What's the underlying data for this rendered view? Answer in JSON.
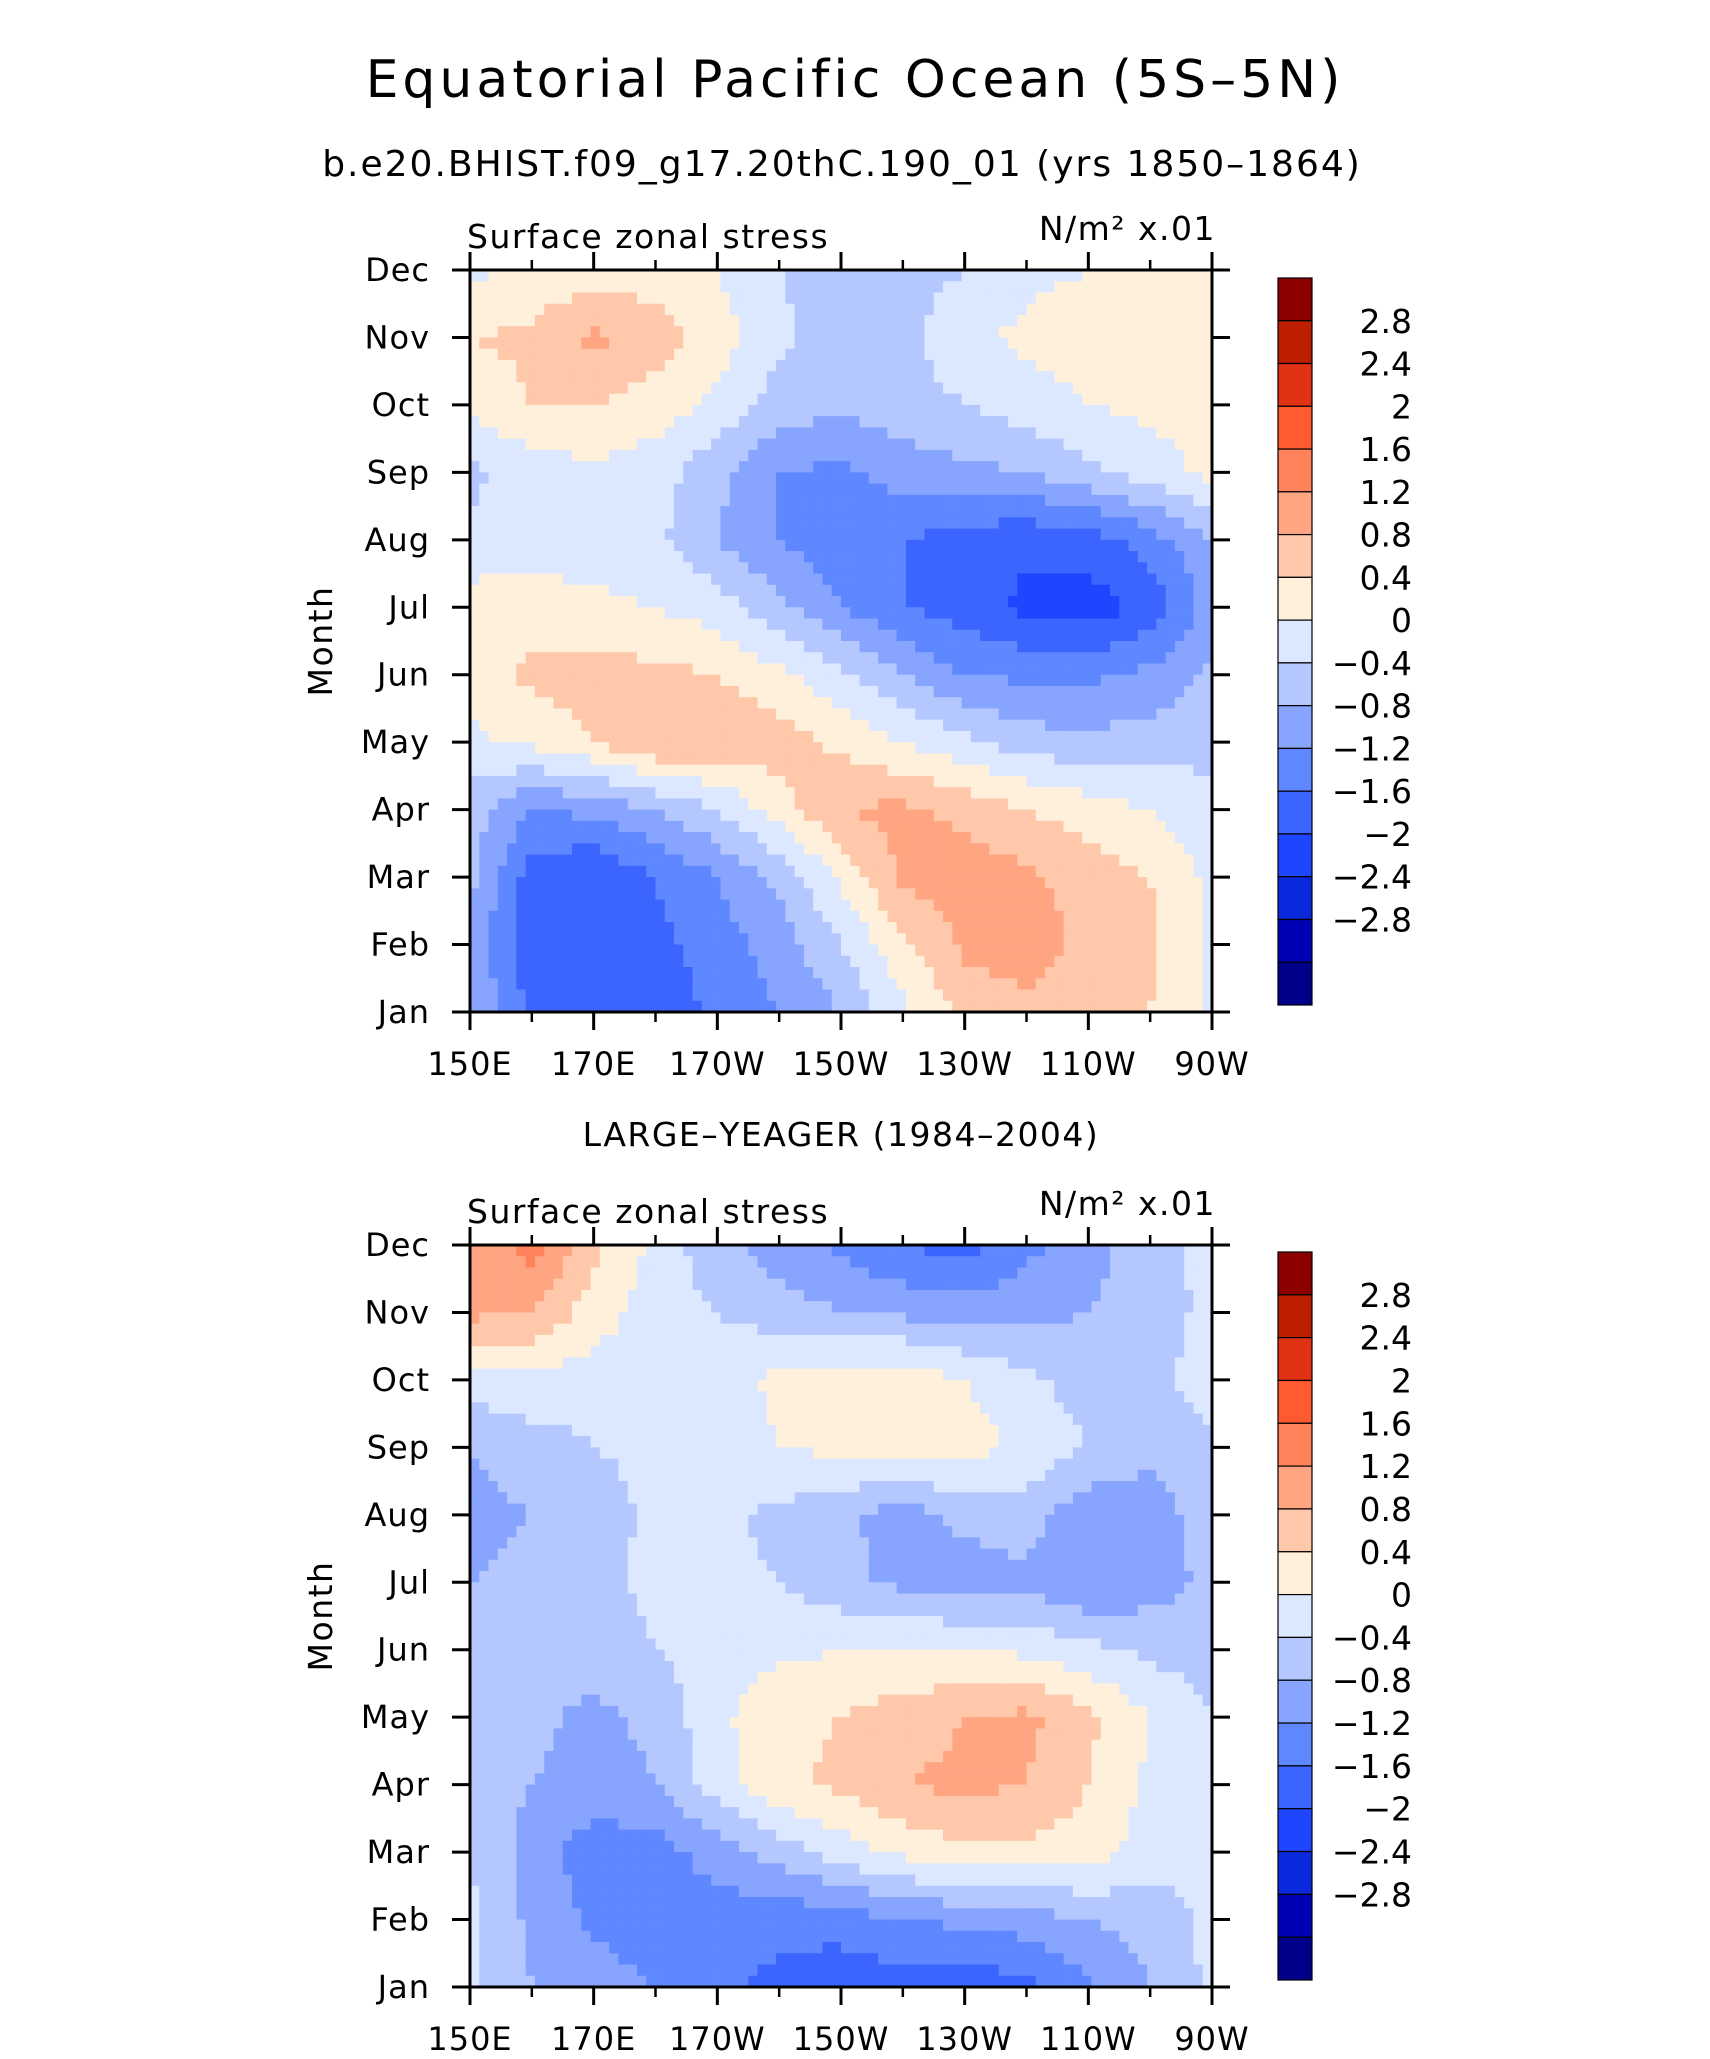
{
  "figure": {
    "title": "Equatorial Pacific Ocean (5S–5N)",
    "subtitle": "b.e20.BHIST.f09_g17.20thC.190_01 (yrs 1850–1864)"
  },
  "colors": {
    "levels": [
      "#00008b",
      "#0000b4",
      "#0a28dc",
      "#1e46ff",
      "#3c64ff",
      "#5f87ff",
      "#87a5ff",
      "#b4c8ff",
      "#dce8ff",
      "#fff0dc",
      "#ffc8aa",
      "#ffa582",
      "#ff825a",
      "#ff5a32",
      "#e13214",
      "#be1e00",
      "#8c0000"
    ],
    "axis": "#000000"
  },
  "chart_data": [
    {
      "type": "heatmap",
      "panel_title": "",
      "left_label": "Surface zonal stress",
      "right_label": "N/m² x.01",
      "xlabel": "",
      "ylabel": "Month",
      "x_ticks": [
        "150E",
        "170E",
        "170W",
        "150W",
        "130W",
        "110W",
        "90W"
      ],
      "x_values": [
        150,
        160,
        170,
        180,
        190,
        200,
        210,
        220,
        230,
        240,
        250,
        260,
        270
      ],
      "x_range": [
        150,
        270
      ],
      "y_ticks": [
        "Jan",
        "Feb",
        "Mar",
        "Apr",
        "May",
        "Jun",
        "Jul",
        "Aug",
        "Sep",
        "Oct",
        "Nov",
        "Dec"
      ],
      "contour_levels": [
        -2.8,
        -2.4,
        -2,
        -1.6,
        -1.2,
        -0.8,
        -0.4,
        0,
        0.4,
        0.8,
        1.2,
        1.6,
        2,
        2.4,
        2.8
      ],
      "colorbar_labels": [
        "2.8",
        "2.4",
        "2",
        "1.6",
        "1.2",
        "0.8",
        "0.4",
        "0",
        "−0.4",
        "−0.8",
        "−1.2",
        "−1.6",
        "−2",
        "−2.4",
        "−2.8"
      ],
      "values": [
        [
          -0.4,
          -1.3,
          -1.5,
          -1.5,
          -1.1,
          -0.8,
          -0.4,
          0.3,
          0.9,
          1.1,
          1.0,
          0.8,
          0.3
        ],
        [
          -0.5,
          -1.5,
          -1.6,
          -1.3,
          -1.0,
          -0.6,
          0.0,
          0.7,
          1.3,
          1.4,
          1.1,
          0.9,
          0.3
        ],
        [
          -0.3,
          -1.4,
          -1.6,
          -1.2,
          -0.8,
          -0.3,
          0.5,
          1.3,
          1.4,
          1.3,
          1.0,
          0.8,
          0.3
        ],
        [
          -0.2,
          -0.8,
          -0.7,
          -0.4,
          0.0,
          0.6,
          1.2,
          1.3,
          1.1,
          0.8,
          0.6,
          0.4,
          0.1
        ],
        [
          0.3,
          0.5,
          0.8,
          1.2,
          1.1,
          1.0,
          0.7,
          0.4,
          0.1,
          -0.2,
          -0.3,
          -0.2,
          -0.1
        ],
        [
          0.6,
          0.9,
          1.0,
          0.9,
          0.8,
          0.5,
          0.1,
          -0.4,
          -0.8,
          -0.9,
          -0.9,
          -0.7,
          -0.3
        ],
        [
          0.6,
          0.6,
          0.5,
          0.4,
          0.2,
          -0.3,
          -0.8,
          -1.2,
          -1.4,
          -1.7,
          -1.8,
          -1.5,
          -0.6
        ],
        [
          0.1,
          0.2,
          0.2,
          0.1,
          -0.4,
          -0.8,
          -1.1,
          -1.2,
          -1.4,
          -1.5,
          -1.4,
          -1.0,
          -0.4
        ],
        [
          -0.1,
          0.2,
          0.3,
          0.2,
          -0.3,
          -0.8,
          -0.9,
          -0.6,
          -0.5,
          -0.4,
          -0.1,
          0.2,
          0.5
        ],
        [
          0.5,
          0.8,
          0.8,
          0.6,
          0.3,
          -0.2,
          -0.3,
          -0.2,
          0.0,
          0.2,
          0.4,
          0.5,
          0.6
        ],
        [
          0.8,
          0.9,
          1.3,
          1.0,
          0.6,
          0.1,
          -0.2,
          -0.1,
          0.3,
          0.5,
          0.6,
          0.6,
          0.7
        ],
        [
          0.3,
          0.5,
          0.6,
          0.6,
          0.4,
          0.0,
          -0.2,
          -0.2,
          0.0,
          0.3,
          0.4,
          0.4,
          0.4
        ]
      ]
    },
    {
      "type": "heatmap",
      "panel_title": "LARGE–YEAGER (1984–2004)",
      "left_label": "Surface zonal stress",
      "right_label": "N/m² x.01",
      "xlabel": "",
      "ylabel": "Month",
      "x_ticks": [
        "150E",
        "170E",
        "170W",
        "150W",
        "130W",
        "110W",
        "90W"
      ],
      "x_values": [
        150,
        160,
        170,
        180,
        190,
        200,
        210,
        220,
        230,
        240,
        250,
        260,
        270
      ],
      "x_range": [
        150,
        270
      ],
      "y_ticks": [
        "Jan",
        "Feb",
        "Mar",
        "Apr",
        "May",
        "Jun",
        "Jul",
        "Aug",
        "Sep",
        "Oct",
        "Nov",
        "Dec"
      ],
      "contour_levels": [
        -2.8,
        -2.4,
        -2,
        -1.6,
        -1.2,
        -0.8,
        -0.4,
        0,
        0.4,
        0.8,
        1.2,
        1.6,
        2,
        2.4,
        2.8
      ],
      "colorbar_labels": [
        "2.8",
        "2.4",
        "2",
        "1.6",
        "1.2",
        "0.8",
        "0.4",
        "0",
        "−0.4",
        "−0.8",
        "−1.2",
        "−1.6",
        "−2",
        "−2.4",
        "−2.8"
      ],
      "values": [
        [
          0.1,
          -0.4,
          -0.6,
          -0.8,
          -1.1,
          -1.3,
          -1.5,
          -1.4,
          -1.5,
          -1.3,
          -0.9,
          -0.4,
          0.1
        ],
        [
          0.1,
          -0.5,
          -0.9,
          -1.0,
          -1.0,
          -1.1,
          -1.0,
          -0.8,
          -0.7,
          -0.6,
          -0.4,
          -0.2,
          0.1
        ],
        [
          0.0,
          -0.6,
          -1.0,
          -1.0,
          -0.6,
          -0.2,
          0.2,
          0.5,
          0.7,
          0.7,
          0.6,
          0.2,
          0.0
        ],
        [
          -0.1,
          -0.4,
          -0.6,
          -0.4,
          0.2,
          0.7,
          0.9,
          1.2,
          1.3,
          1.2,
          0.8,
          0.3,
          0.0
        ],
        [
          -0.1,
          -0.3,
          -0.5,
          -0.3,
          0.3,
          0.7,
          0.8,
          1.0,
          1.2,
          1.3,
          0.9,
          0.4,
          0.0
        ],
        [
          -0.3,
          -0.3,
          -0.2,
          0.0,
          0.2,
          0.3,
          0.4,
          0.4,
          0.4,
          0.3,
          0.1,
          -0.1,
          -0.2
        ],
        [
          -0.4,
          -0.3,
          -0.1,
          0.1,
          0.1,
          0.0,
          -0.3,
          -0.5,
          -0.6,
          -0.5,
          -0.8,
          -0.6,
          -0.3
        ],
        [
          -0.5,
          -0.4,
          -0.2,
          0.1,
          0.1,
          -0.1,
          -0.3,
          -0.6,
          -0.3,
          -0.2,
          -0.7,
          -0.6,
          -0.2
        ],
        [
          -0.4,
          -0.2,
          0.0,
          0.1,
          0.2,
          0.4,
          0.5,
          0.6,
          0.6,
          0.3,
          0.0,
          -0.3,
          -0.2
        ],
        [
          0.2,
          0.3,
          0.2,
          0.2,
          0.2,
          0.5,
          0.6,
          0.7,
          0.4,
          0.1,
          -0.2,
          -0.3,
          0.4
        ],
        [
          1.3,
          1.2,
          0.6,
          0.2,
          0.0,
          -0.2,
          -0.4,
          -0.5,
          -0.6,
          -0.5,
          -0.4,
          -0.2,
          0.1
        ],
        [
          1.2,
          1.8,
          0.9,
          0.3,
          -0.3,
          -0.6,
          -0.9,
          -1.2,
          -1.4,
          -0.9,
          -0.6,
          -0.1,
          0.1
        ]
      ]
    }
  ]
}
